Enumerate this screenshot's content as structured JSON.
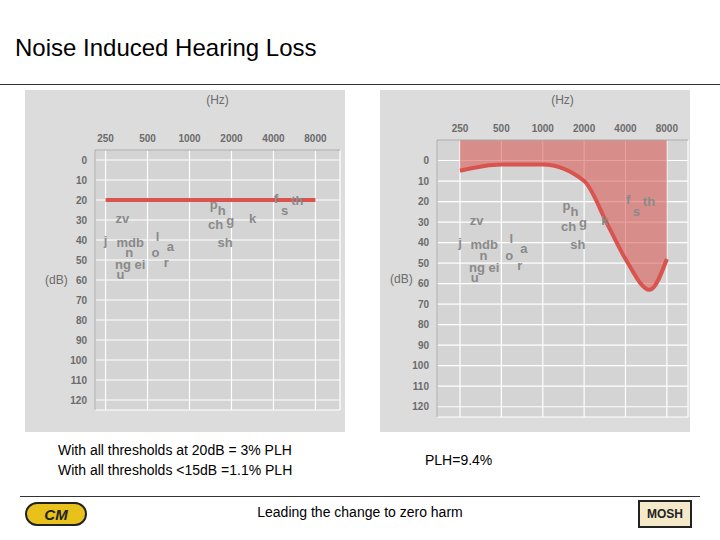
{
  "title": "Noise Induced Hearing Loss",
  "footer": "Leading the change to zero harm",
  "logos": [
    "CM",
    "MOSH"
  ],
  "chart_data": [
    {
      "type": "line",
      "x_label": "(Hz)",
      "y_label": "(dB)",
      "x": [
        250,
        500,
        1000,
        2000,
        4000,
        8000
      ],
      "values": [
        20,
        20,
        20,
        20,
        20,
        20
      ],
      "color": "#d9534f",
      "log": "x",
      "xlim": [
        210,
        12000
      ],
      "xticks": [
        250,
        500,
        1000,
        2000,
        4000,
        8000
      ],
      "ylim": [
        125,
        -5
      ],
      "yticks": [
        0,
        10,
        20,
        30,
        40,
        50,
        60,
        70,
        80,
        90,
        100,
        110,
        120
      ],
      "grid": true,
      "annotations": [
        {
          "text": "zv",
          "x": 330,
          "y": 29
        },
        {
          "text": "j",
          "x": 250,
          "y": 40
        },
        {
          "text": "mdb",
          "x": 375,
          "y": 41
        },
        {
          "text": "n",
          "x": 370,
          "y": 46
        },
        {
          "text": "ng ei",
          "x": 375,
          "y": 52
        },
        {
          "text": "u",
          "x": 320,
          "y": 57
        },
        {
          "text": "l",
          "x": 590,
          "y": 38
        },
        {
          "text": "o",
          "x": 570,
          "y": 46
        },
        {
          "text": "a",
          "x": 730,
          "y": 43
        },
        {
          "text": "r",
          "x": 680,
          "y": 51
        },
        {
          "text": "p",
          "x": 1490,
          "y": 22
        },
        {
          "text": "h",
          "x": 1700,
          "y": 25
        },
        {
          "text": "ch",
          "x": 1540,
          "y": 32
        },
        {
          "text": "g",
          "x": 1960,
          "y": 30
        },
        {
          "text": "sh",
          "x": 1800,
          "y": 41
        },
        {
          "text": "k",
          "x": 2830,
          "y": 29
        },
        {
          "text": "f",
          "x": 4180,
          "y": 19
        },
        {
          "text": "s",
          "x": 4800,
          "y": 25
        },
        {
          "text": "th",
          "x": 5930,
          "y": 20
        }
      ],
      "caption": [
        "With all thresholds at 20dB = 3% PLH",
        "With all thresholds <15dB =1.1% PLH"
      ]
    },
    {
      "type": "area",
      "x_label": "(Hz)",
      "y_label": "(dB)",
      "x": [
        250,
        500,
        1000,
        2000,
        3000,
        4000,
        6000,
        8000
      ],
      "values": [
        5,
        2,
        2,
        10,
        32,
        48,
        63,
        48
      ],
      "color": "#d9534f",
      "log": "x",
      "xlim": [
        170,
        11400
      ],
      "xticks": [
        250,
        500,
        1000,
        2000,
        4000,
        8000
      ],
      "ylim": [
        125,
        -10
      ],
      "yticks": [
        0,
        10,
        20,
        30,
        40,
        50,
        60,
        70,
        80,
        90,
        100,
        110,
        120
      ],
      "grid": true,
      "annotations": [
        {
          "text": "zv",
          "x": 330,
          "y": 29
        },
        {
          "text": "j",
          "x": 250,
          "y": 40
        },
        {
          "text": "mdb",
          "x": 375,
          "y": 41
        },
        {
          "text": "n",
          "x": 370,
          "y": 46
        },
        {
          "text": "ng ei",
          "x": 375,
          "y": 52
        },
        {
          "text": "u",
          "x": 320,
          "y": 57
        },
        {
          "text": "l",
          "x": 590,
          "y": 38
        },
        {
          "text": "o",
          "x": 570,
          "y": 46
        },
        {
          "text": "a",
          "x": 730,
          "y": 43
        },
        {
          "text": "r",
          "x": 680,
          "y": 51
        },
        {
          "text": "p",
          "x": 1490,
          "y": 22
        },
        {
          "text": "h",
          "x": 1700,
          "y": 25
        },
        {
          "text": "ch",
          "x": 1540,
          "y": 32
        },
        {
          "text": "g",
          "x": 1960,
          "y": 30
        },
        {
          "text": "sh",
          "x": 1800,
          "y": 41
        },
        {
          "text": "k",
          "x": 2830,
          "y": 29
        },
        {
          "text": "f",
          "x": 4180,
          "y": 19
        },
        {
          "text": "s",
          "x": 4800,
          "y": 25
        },
        {
          "text": "th",
          "x": 5930,
          "y": 20
        }
      ],
      "caption": [
        "PLH=9.4%"
      ]
    }
  ]
}
